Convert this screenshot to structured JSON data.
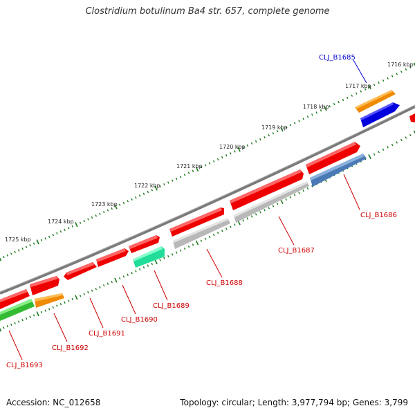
{
  "title": "Clostridium botulinum Ba4 str. 657, complete genome",
  "accession": "Accession: NC_012658",
  "topology": "Topology: circular; Length: 3,977,794 bp; Genes: 3,799",
  "colors": {
    "backbone": "#7a7a7a",
    "ticks": "#1a7a1a",
    "label_default": "#cc0000",
    "label_highlight": "#0000cc",
    "red": "#ee0000",
    "gray": "#b8b8b8",
    "steelblue": "#4a7ab5",
    "orange": "#f08a00",
    "blue": "#0000dd",
    "seagreen": "#22dd99",
    "green": "#33bb33"
  },
  "kbp_labels": [
    "1716 kbp",
    "1717 kbp",
    "1718 kbp",
    "1719 kbp",
    "1720 kbp",
    "1721 kbp",
    "1722 kbp",
    "1723 kbp",
    "1724 kbp",
    "1725 kbp"
  ],
  "gene_labels": [
    {
      "name": "CLJ_B1685",
      "color": "blue"
    },
    {
      "name": "CLJ_B1686",
      "color": "red"
    },
    {
      "name": "CLJ_B1687",
      "color": "red"
    },
    {
      "name": "CLJ_B1688",
      "color": "red"
    },
    {
      "name": "CLJ_B1689",
      "color": "red"
    },
    {
      "name": "CLJ_B1690",
      "color": "red"
    },
    {
      "name": "CLJ_B1691",
      "color": "red"
    },
    {
      "name": "CLJ_B1692",
      "color": "red"
    },
    {
      "name": "CLJ_B1693",
      "color": "red"
    }
  ]
}
